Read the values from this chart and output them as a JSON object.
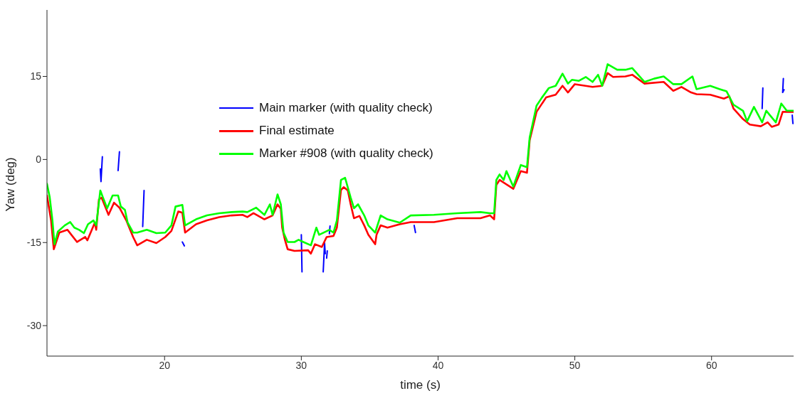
{
  "chart_data": {
    "type": "line",
    "xlabel": "time (s)",
    "ylabel": "Yaw (deg)",
    "xlim": [
      11.4,
      66
    ],
    "xticks": [
      20,
      30,
      40,
      50,
      60
    ],
    "ylim": [
      -35.5,
      27
    ],
    "yticks": [
      -30,
      -15,
      0,
      15
    ],
    "grid": false,
    "legend": "top",
    "series": [
      {
        "name": "Main marker (with quality check)",
        "color": "#0000ff",
        "x": [
          15.3,
          15.35,
          15.45,
          16,
          16.6,
          16.7,
          17.5,
          18.5,
          18.4,
          20,
          21.3,
          21.45,
          25,
          30.0,
          30.05,
          31,
          31.6,
          31.7,
          31.75,
          31.8,
          31.85,
          31.9,
          32,
          32.05,
          32.1,
          35,
          38.25,
          38.35,
          50,
          63.75,
          63.7,
          64.5,
          65.25,
          65.2,
          65.3,
          65.6,
          65.9,
          65.95
        ],
        "values": [
          -1.7,
          -4,
          0.5,
          null,
          -2,
          1.4,
          null,
          -5.6,
          -12.1,
          null,
          -14.9,
          -15.6,
          null,
          -13.6,
          -20.3,
          null,
          -20.3,
          -15.1,
          -17,
          null,
          -17.8,
          -16.5,
          null,
          -13.4,
          -12.0,
          null,
          -11.9,
          -13.2,
          null,
          12.9,
          9.2,
          null,
          14.6,
          12.1,
          12.6,
          null,
          8,
          6.5
        ]
      },
      {
        "name": "Final estimate",
        "color": "#ff0000",
        "x": [
          11.4,
          11.7,
          11.9,
          12.3,
          12.9,
          13.6,
          14.2,
          14.35,
          14.9,
          15.0,
          15.2,
          15.4,
          15.9,
          16.3,
          16.7,
          17.2,
          17.7,
          18.0,
          18.7,
          19.4,
          20.05,
          20.5,
          21.0,
          21.3,
          21.5,
          22.3,
          23.1,
          24.0,
          24.9,
          25.7,
          26.05,
          26.5,
          27.3,
          27.9,
          28.26,
          28.5,
          28.6,
          28.8,
          29.0,
          29.5,
          30.5,
          30.7,
          31.0,
          31.5,
          31.85,
          32.35,
          32.6,
          32.9,
          33.1,
          33.4,
          33.6,
          33.85,
          34.25,
          34.6,
          34.9,
          35.4,
          35.5,
          35.8,
          36.3,
          37.2,
          38.0,
          39.7,
          41.4,
          43.1,
          43.8,
          44.1,
          44.26,
          44.5,
          45.5,
          46.05,
          46.5,
          46.7,
          47.2,
          47.9,
          48.6,
          49.1,
          49.5,
          50.0,
          51.3,
          52.0,
          52.4,
          52.8,
          53.7,
          54.2,
          55.1,
          56.5,
          57.2,
          57.8,
          58.5,
          58.9,
          59.9,
          60.9,
          61.3,
          61.6,
          62.3,
          62.8,
          63.6,
          64.1,
          64.4,
          64.9,
          65.2,
          66.0
        ],
        "values": [
          -6.5,
          -11,
          -16.2,
          -13.2,
          -12.7,
          -14.9,
          -14,
          -14.6,
          -11.4,
          -12.7,
          -7.2,
          -6.9,
          -10,
          -7.8,
          -8.7,
          -11,
          -14,
          -15.5,
          -14.5,
          -15.1,
          -14,
          -12.9,
          -9.4,
          -9.6,
          -13.2,
          -11.7,
          -11,
          -10.4,
          -10.1,
          -10,
          -10.4,
          -9.7,
          -10.8,
          -10.1,
          -8.1,
          -8.9,
          -12.3,
          -14.5,
          -16.2,
          -16.5,
          -16.4,
          -17,
          -15.3,
          -15.8,
          -14,
          -13.8,
          -12.3,
          -5.5,
          -5,
          -5.6,
          -8,
          -10.6,
          -10.2,
          -11.9,
          -13.6,
          -15.3,
          -13.6,
          -11.9,
          -12.3,
          -11.7,
          -11.3,
          -11.3,
          -10.6,
          -10.6,
          -10.1,
          -10.8,
          -4.6,
          -3.7,
          -5.3,
          -2.1,
          -2.4,
          3.5,
          8.6,
          11.2,
          11.7,
          13.3,
          12.1,
          13.6,
          13.1,
          13.3,
          15.6,
          14.9,
          15.0,
          15.3,
          13.7,
          14.0,
          12.4,
          13.1,
          12.1,
          11.8,
          11.7,
          11.0,
          11.4,
          9.2,
          7.3,
          6.3,
          6.0,
          6.7,
          5.9,
          6.3,
          8.6,
          8.6
        ]
      },
      {
        "name": "Marker #908 (with quality check)",
        "color": "#00ff00",
        "x": [
          11.4,
          11.6,
          11.8,
          11.95,
          12.2,
          12.7,
          13.1,
          13.4,
          13.75,
          14.1,
          14.4,
          14.8,
          15.0,
          15.3,
          15.5,
          15.8,
          16.2,
          16.6,
          16.8,
          17.1,
          17.3,
          17.7,
          18.0,
          18.7,
          19.4,
          20.05,
          20.5,
          20.8,
          21.3,
          21.5,
          22.3,
          23.1,
          24.0,
          24.9,
          25.7,
          26.05,
          26.7,
          27.3,
          27.7,
          27.9,
          28.26,
          28.5,
          28.7,
          29.0,
          29.5,
          29.8,
          30.15,
          30.7,
          31.1,
          31.3,
          32.05,
          32.35,
          32.6,
          32.9,
          33.2,
          33.6,
          33.85,
          34.15,
          34.6,
          34.9,
          35.4,
          35.8,
          36.3,
          37.2,
          38.0,
          39.7,
          41.4,
          43.1,
          43.8,
          44.1,
          44.26,
          44.5,
          44.8,
          45.0,
          45.5,
          46.05,
          46.5,
          46.7,
          47.2,
          47.6,
          48.1,
          48.6,
          49.1,
          49.5,
          49.8,
          50.3,
          50.8,
          51.3,
          51.7,
          52.0,
          52.4,
          53.1,
          53.7,
          54.2,
          55.1,
          55.8,
          56.5,
          57.2,
          57.8,
          58.6,
          58.9,
          59.9,
          60.6,
          61.1,
          61.6,
          62.3,
          62.6,
          63.1,
          63.7,
          64.0,
          64.7,
          65.1,
          65.5,
          66.0
        ],
        "values": [
          -4.4,
          -6.8,
          -11,
          -15.3,
          -13,
          -11.9,
          -11.3,
          -12.3,
          -12.7,
          -13.3,
          -11.7,
          -11,
          -11.9,
          -5.6,
          -6.9,
          -8.8,
          -6.5,
          -6.5,
          -8.5,
          -9.1,
          -11.4,
          -13.2,
          -13.2,
          -12.7,
          -13.3,
          -13.2,
          -11.9,
          -8.5,
          -8.2,
          -11.9,
          -10.8,
          -10.1,
          -9.7,
          -9.5,
          -9.4,
          -9.5,
          -8.7,
          -10,
          -8.1,
          -10,
          -6.3,
          -8.1,
          -13.2,
          -14.9,
          -14.9,
          -14.5,
          -14.9,
          -15.5,
          -12.3,
          -13.6,
          -12.7,
          -13.2,
          -11,
          -3.7,
          -3.3,
          -6.8,
          -8.8,
          -8.1,
          -10.1,
          -11.9,
          -13.2,
          -10.1,
          -10.8,
          -11.4,
          -10.1,
          -10,
          -9.7,
          -9.5,
          -9.7,
          -9.7,
          -3.7,
          -2.7,
          -3.7,
          -2.1,
          -4.9,
          -1.0,
          -1.4,
          4.0,
          9.7,
          11.2,
          12.9,
          13.3,
          15.5,
          13.7,
          14.4,
          14.2,
          14.9,
          14.0,
          15.3,
          13.3,
          17.2,
          16.2,
          16.2,
          16.5,
          14.0,
          14.6,
          15.0,
          13.6,
          13.6,
          15.0,
          12.7,
          13.3,
          12.7,
          12.3,
          9.9,
          8.8,
          6.9,
          9.5,
          6.7,
          8.8,
          6.7,
          10.1,
          8.8,
          8.8
        ]
      }
    ]
  }
}
